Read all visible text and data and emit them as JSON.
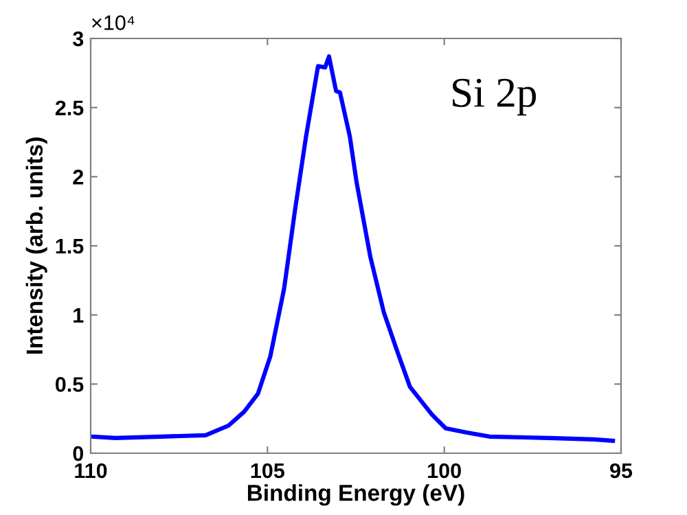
{
  "chart_data": {
    "type": "line",
    "xlabel": "Binding Energy (eV)",
    "ylabel": "Intensity (arb. units)",
    "annotations": [
      "×10⁴",
      "Si 2p"
    ],
    "x": [
      109.96,
      109.3,
      108.0,
      106.75,
      106.1,
      105.66,
      105.27,
      104.92,
      104.53,
      104.22,
      103.91,
      103.57,
      103.37,
      103.26,
      103.06,
      102.95,
      102.67,
      102.48,
      102.09,
      101.71,
      101.32,
      100.97,
      100.35,
      99.96,
      99.38,
      98.72,
      97.05,
      95.78,
      95.23
    ],
    "series": [
      {
        "color": "#0000ff",
        "values": [
          0.12,
          0.11,
          0.12,
          0.13,
          0.2,
          0.3,
          0.43,
          0.7,
          1.19,
          1.76,
          2.29,
          2.8,
          2.79,
          2.87,
          2.62,
          2.61,
          2.29,
          1.96,
          1.42,
          1.02,
          0.73,
          0.48,
          0.28,
          0.18,
          0.15,
          0.12,
          0.11,
          0.1,
          0.09
        ]
      }
    ],
    "xlim": [
      110,
      95
    ],
    "xticks": [
      110,
      105,
      100,
      95
    ],
    "ylim": [
      0,
      3
    ],
    "yticks": [
      0,
      0.5,
      1,
      1.5,
      2,
      2.5,
      3
    ],
    "grid": false,
    "marker": "none",
    "line_style": "solid"
  }
}
